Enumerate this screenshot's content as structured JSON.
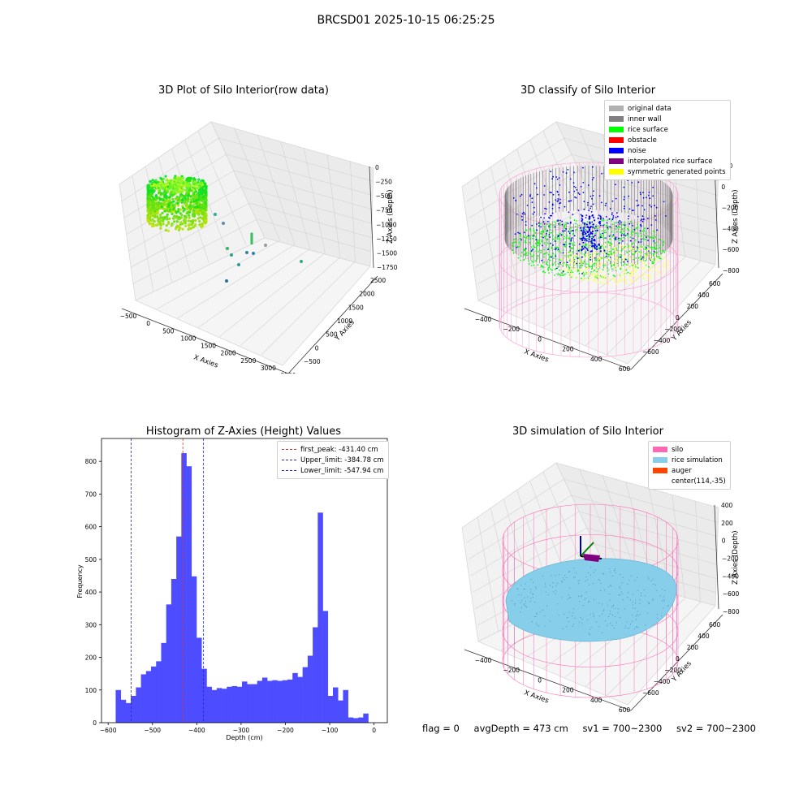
{
  "figure": {
    "suptitle": "BRCSD01 2025-10-15 06:25:25",
    "footer": {
      "flag": "flag = 0",
      "avg_depth": "avgDepth = 473 cm",
      "sv1": "sv1 = 700~2300",
      "sv2": "sv2 = 700~2300"
    }
  },
  "colors": {
    "hist_bar": "#4d4dff",
    "peak_line": "#e03030",
    "limit_line": "#2222cc",
    "silo_pink": "#ff69b4",
    "rice_sim": "#87ceeb",
    "auger": "#ff4500",
    "inner_wall": "#808080",
    "original_data": "#b0b0b0",
    "rice_surface": "#00ff00",
    "obstacle": "#ff0000",
    "noise": "#0000ff",
    "interpolated": "#800080",
    "symmetric": "#ffff00"
  },
  "chart_data": [
    {
      "type": "scatter",
      "title": "3D Plot of Silo Interior(row data)",
      "xlabel": "X Axies",
      "ylabel": "Y Axies",
      "zlabel": "Z Axies (Depth)",
      "x_ticks": [
        "−500",
        "0",
        "500",
        "1000",
        "1500",
        "2000",
        "2500",
        "3000",
        "3500"
      ],
      "y_ticks": [
        "−500",
        "0",
        "500",
        "1000",
        "1500",
        "2000",
        "2500"
      ],
      "z_ticks": [
        "0",
        "−250",
        "−500",
        "−750",
        "−1000",
        "−1250",
        "−1500",
        "−1750"
      ],
      "xlim": [
        -700,
        3600
      ],
      "ylim": [
        -700,
        2700
      ],
      "zlim": [
        -1900,
        100
      ]
    },
    {
      "type": "scatter",
      "title": "3D classify of Silo Interior",
      "xlabel": "X Axies",
      "ylabel": "Y Axies",
      "zlabel": "Z Axies (Depth)",
      "x_ticks": [
        "−400",
        "−200",
        "0",
        "200",
        "400",
        "600"
      ],
      "y_ticks": [
        "−600",
        "−400",
        "−200",
        "0",
        "200",
        "400",
        "600"
      ],
      "z_ticks": [
        "200",
        "0",
        "−200",
        "−400",
        "−600",
        "−800"
      ],
      "legend": [
        "original data",
        "inner wall",
        "rice surface",
        "obstacle",
        "noise",
        "interpolated rice surface",
        "symmetric generated points"
      ]
    },
    {
      "type": "bar",
      "title": "Histogram of Z-Axies (Height) Values",
      "xlabel": "Depth (cm)",
      "ylabel": "Frequency",
      "xlim": [
        -615,
        30
      ],
      "ylim": [
        0,
        870
      ],
      "x_ticks": [
        -600,
        -500,
        -400,
        -300,
        -200,
        -100,
        0
      ],
      "y_ticks": [
        0,
        100,
        200,
        300,
        400,
        500,
        600,
        700,
        800
      ],
      "bin_edges_start": -583,
      "bin_width": 11.4,
      "values": [
        100,
        70,
        60,
        82,
        108,
        148,
        158,
        172,
        188,
        244,
        362,
        440,
        570,
        825,
        785,
        448,
        260,
        165,
        110,
        100,
        106,
        104,
        110,
        112,
        110,
        126,
        118,
        118,
        128,
        138,
        128,
        130,
        128,
        130,
        132,
        152,
        140,
        170,
        205,
        292,
        643,
        342,
        82,
        108,
        68,
        100,
        16,
        14,
        16,
        28
      ],
      "lines": [
        {
          "label": "first_peak: -431.40 cm",
          "x": -431.4,
          "style": "peak"
        },
        {
          "label": "Upper_limit: -384.78 cm",
          "x": -384.78,
          "style": "limit"
        },
        {
          "label": "Lower_limit: -547.94 cm",
          "x": -547.94,
          "style": "limit"
        }
      ]
    },
    {
      "type": "area",
      "title": "3D simulation of Silo Interior",
      "xlabel": "X Axies",
      "ylabel": "Y Axies",
      "zlabel": "Z Axies (Depth)",
      "x_ticks": [
        "−400",
        "−200",
        "0",
        "200",
        "400",
        "600"
      ],
      "y_ticks": [
        "−600",
        "−400",
        "−200",
        "0",
        "200",
        "400",
        "600"
      ],
      "z_ticks": [
        "400",
        "200",
        "0",
        "−200",
        "−400",
        "−600",
        "−800"
      ],
      "legend": [
        "silo",
        "rice simulation",
        "auger",
        "center(114,-35)"
      ]
    }
  ]
}
